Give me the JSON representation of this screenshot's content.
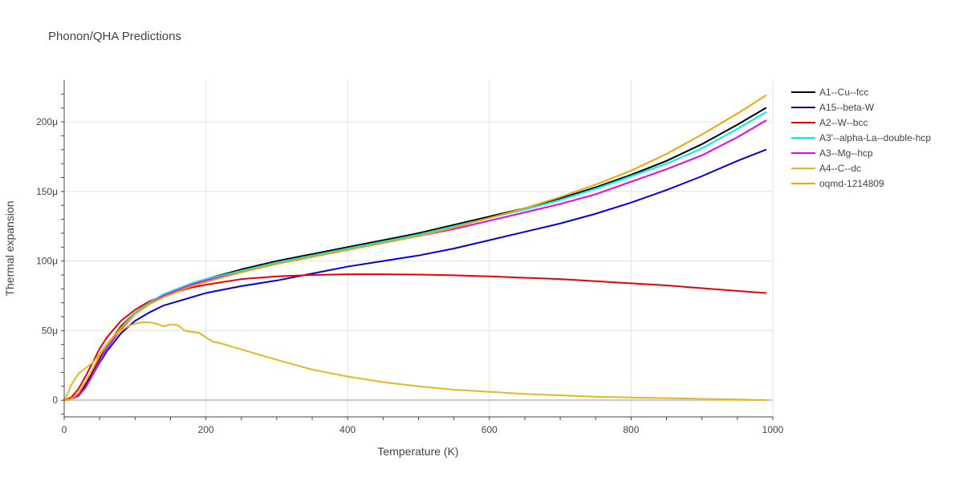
{
  "chart_data": {
    "type": "line",
    "title": "Phonon/QHA Predictions",
    "xlabel": "Temperature (K)",
    "ylabel": "Thermal expansion",
    "xlim": [
      0,
      1000
    ],
    "ylim": [
      -12,
      230
    ],
    "y_unit_suffix": "μ",
    "x_ticks": [
      0,
      200,
      400,
      600,
      800,
      1000
    ],
    "x_tick_labels": [
      "0",
      "200",
      "400",
      "600",
      "800",
      "1000"
    ],
    "y_ticks": [
      0,
      50,
      100,
      150,
      200
    ],
    "y_tick_labels": [
      "0",
      "50μ",
      "100μ",
      "150μ",
      "200μ"
    ],
    "grid": true,
    "legend_position": "right",
    "series": [
      {
        "name": "A1--Cu--fcc",
        "color": "#000000",
        "x": [
          0,
          10,
          20,
          30,
          40,
          50,
          60,
          80,
          100,
          120,
          140,
          160,
          180,
          200,
          250,
          300,
          350,
          400,
          450,
          500,
          550,
          600,
          650,
          700,
          750,
          800,
          850,
          900,
          950,
          990
        ],
        "y": [
          0,
          1,
          4,
          11,
          20,
          30,
          39,
          53,
          63,
          70,
          76,
          80,
          84,
          87,
          94,
          100,
          105,
          110,
          115,
          120,
          126,
          132,
          138,
          145,
          153,
          162,
          172,
          184,
          198,
          210
        ]
      },
      {
        "name": "A15--beta-W",
        "color": "#0000ee",
        "x": [
          0,
          10,
          20,
          30,
          40,
          50,
          60,
          80,
          100,
          120,
          140,
          160,
          180,
          200,
          250,
          300,
          350,
          400,
          450,
          500,
          550,
          600,
          650,
          700,
          750,
          800,
          850,
          900,
          950,
          990
        ],
        "y": [
          0,
          1,
          3,
          9,
          18,
          27,
          35,
          48,
          57,
          63,
          68,
          71,
          74,
          77,
          82,
          86,
          91,
          96,
          100,
          104,
          109,
          115,
          121,
          127,
          134,
          142,
          151,
          161,
          172,
          180
        ]
      },
      {
        "name": "A2--W--bcc",
        "color": "#ee0000",
        "x": [
          0,
          10,
          20,
          30,
          40,
          50,
          60,
          80,
          100,
          120,
          140,
          160,
          180,
          200,
          250,
          300,
          350,
          400,
          450,
          500,
          550,
          600,
          650,
          700,
          750,
          800,
          850,
          900,
          950,
          990
        ],
        "y": [
          0,
          2,
          8,
          17,
          27,
          37,
          45,
          57,
          65,
          71,
          75,
          78,
          81,
          83,
          87,
          89,
          90,
          90.5,
          90.5,
          90.3,
          89.8,
          89,
          88,
          87,
          85.5,
          84,
          82.5,
          80.5,
          78.5,
          77
        ]
      },
      {
        "name": "A3'--alpha-La--double-hcp",
        "color": "#00eeee",
        "x": [
          0,
          10,
          20,
          30,
          40,
          50,
          60,
          80,
          100,
          120,
          140,
          160,
          180,
          200,
          250,
          300,
          350,
          400,
          450,
          500,
          550,
          600,
          650,
          700,
          750,
          800,
          850,
          900,
          950,
          990
        ],
        "y": [
          0,
          1,
          3,
          9,
          18,
          28,
          38,
          52,
          63,
          70,
          76,
          80,
          84,
          87,
          93,
          99,
          104,
          109,
          114,
          119,
          125,
          131,
          137,
          144,
          152,
          161,
          170,
          181,
          195,
          207
        ]
      },
      {
        "name": "A3--Mg--hcp",
        "color": "#ee00ee",
        "x": [
          0,
          10,
          20,
          30,
          40,
          50,
          60,
          80,
          100,
          120,
          140,
          160,
          180,
          200,
          250,
          300,
          350,
          400,
          450,
          500,
          550,
          600,
          650,
          700,
          750,
          800,
          850,
          900,
          950,
          990
        ],
        "y": [
          0,
          1,
          3,
          9,
          18,
          28,
          37,
          51,
          62,
          69,
          75,
          79,
          83,
          86,
          92,
          98,
          103,
          108,
          113,
          118,
          123,
          129,
          135,
          141,
          148,
          157,
          166,
          176,
          189,
          201
        ]
      },
      {
        "name": "A4--C--dc",
        "color": "#e6b820",
        "x": [
          0,
          5,
          10,
          20,
          30,
          40,
          50,
          60,
          70,
          80,
          90,
          100,
          110,
          120,
          130,
          140,
          150,
          160,
          170,
          180,
          190,
          200,
          210,
          220,
          240,
          260,
          280,
          300,
          350,
          400,
          450,
          500,
          550,
          600,
          650,
          700,
          750,
          800,
          850,
          900,
          950,
          990
        ],
        "y": [
          0,
          5,
          11,
          19,
          23,
          27,
          33,
          40,
          46,
          50,
          53,
          55,
          56,
          56,
          55,
          53,
          54.5,
          54,
          50,
          49,
          48.5,
          45,
          42,
          41,
          38,
          35,
          32,
          29,
          22,
          17,
          13,
          10,
          7.5,
          6,
          4.5,
          3.5,
          2.5,
          2,
          1.5,
          1,
          0.5,
          0
        ]
      },
      {
        "name": "oqmd-1214809",
        "color": "#f5a300",
        "x": [
          0,
          10,
          20,
          30,
          40,
          50,
          60,
          80,
          100,
          120,
          140,
          160,
          180,
          200,
          250,
          300,
          350,
          400,
          450,
          500,
          550,
          600,
          650,
          700,
          750,
          800,
          850,
          900,
          950,
          990
        ],
        "y": [
          0,
          1,
          5,
          13,
          22,
          32,
          40,
          52,
          62,
          69,
          74,
          78,
          82,
          85,
          92,
          98,
          103,
          108,
          113,
          118,
          124,
          131,
          138,
          146,
          155,
          165,
          177,
          191,
          206,
          219
        ]
      }
    ]
  }
}
